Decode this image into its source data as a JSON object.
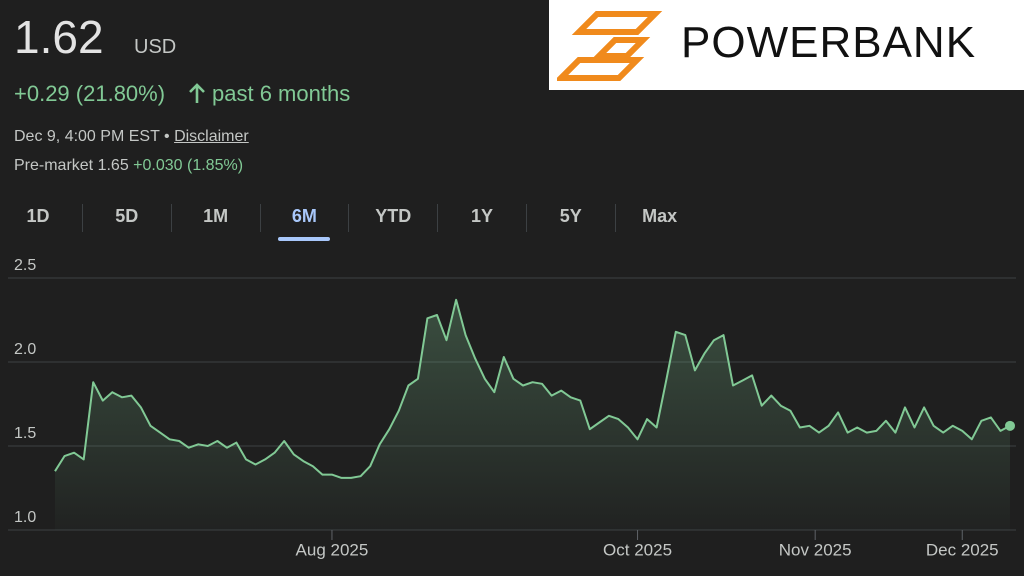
{
  "header": {
    "price": "1.62",
    "currency": "USD",
    "change": "+0.29 (21.80%)",
    "period": "past 6 months",
    "timestamp": "Dec 9, 4:00 PM EST",
    "separator": "•",
    "disclaimer": "Disclaimer",
    "premarket": "Pre-market 1.65",
    "premarket_change": "+0.030 (1.85%)"
  },
  "logo": {
    "text": "POWERBANK"
  },
  "tabs": [
    "1D",
    "5D",
    "1M",
    "6M",
    "YTD",
    "1Y",
    "5Y",
    "Max"
  ],
  "selected_tab": 3,
  "chart_data": {
    "type": "line",
    "color": "#81c995",
    "grid": true,
    "values": [
      1.35,
      1.44,
      1.46,
      1.42,
      1.88,
      1.77,
      1.82,
      1.79,
      1.8,
      1.73,
      1.62,
      1.58,
      1.54,
      1.53,
      1.49,
      1.51,
      1.5,
      1.53,
      1.49,
      1.52,
      1.42,
      1.39,
      1.42,
      1.46,
      1.53,
      1.45,
      1.41,
      1.38,
      1.33,
      1.33,
      1.31,
      1.31,
      1.32,
      1.38,
      1.51,
      1.6,
      1.71,
      1.86,
      1.9,
      2.26,
      2.28,
      2.13,
      2.37,
      2.16,
      2.02,
      1.9,
      1.82,
      2.03,
      1.9,
      1.86,
      1.88,
      1.87,
      1.8,
      1.83,
      1.79,
      1.77,
      1.6,
      1.64,
      1.68,
      1.66,
      1.61,
      1.54,
      1.66,
      1.61,
      1.89,
      2.18,
      2.16,
      1.95,
      2.05,
      2.13,
      2.16,
      1.86,
      1.89,
      1.92,
      1.74,
      1.8,
      1.74,
      1.71,
      1.61,
      1.62,
      1.58,
      1.62,
      1.7,
      1.58,
      1.61,
      1.58,
      1.59,
      1.65,
      1.58,
      1.73,
      1.61,
      1.73,
      1.62,
      1.58,
      1.62,
      1.59,
      1.54,
      1.65,
      1.67,
      1.59,
      1.62
    ],
    "xlim": [
      0,
      100
    ],
    "xticks": [
      {
        "value": 29,
        "label": "Aug 2025"
      },
      {
        "value": 61,
        "label": "Oct 2025"
      },
      {
        "value": 79.6,
        "label": "Nov 2025"
      },
      {
        "value": 95,
        "label": "Dec 2025"
      }
    ],
    "ylim": [
      1.0,
      2.5
    ],
    "yticks": [
      {
        "value": 2.5,
        "label": "2.5"
      },
      {
        "value": 2.0,
        "label": "2.0"
      },
      1.5,
      {
        "value": 1.0,
        "label": "1.0"
      }
    ]
  }
}
